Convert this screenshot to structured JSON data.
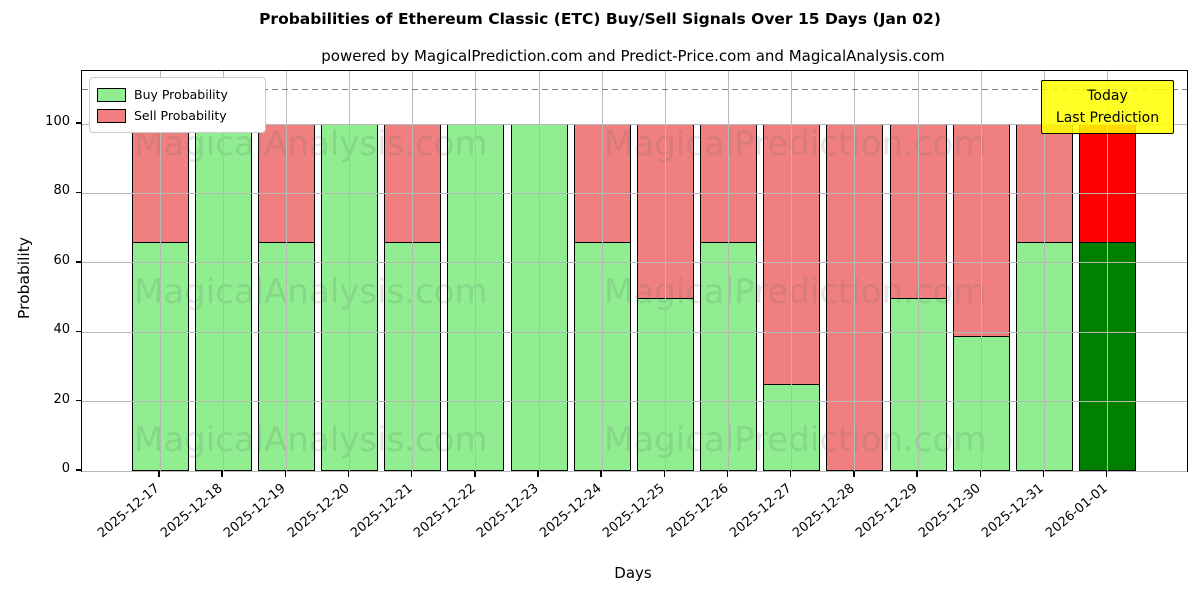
{
  "figure": {
    "title": "Probabilities of Ethereum Classic (ETC) Buy/Sell Signals Over 15 Days (Jan 02)",
    "subtitle": "powered by MagicalPrediction.com and Predict-Price.com and MagicalAnalysis.com"
  },
  "chart_data": {
    "type": "bar",
    "stacked": true,
    "title": "Probabilities of Ethereum Classic (ETC) Buy/Sell Signals Over 15 Days (Jan 02)",
    "subtitle": "powered by MagicalPrediction.com and Predict-Price.com and MagicalAnalysis.com",
    "xlabel": "Days",
    "ylabel": "Probability",
    "ylim": [
      0,
      115
    ],
    "yticks": [
      0,
      20,
      40,
      60,
      80,
      100
    ],
    "grid": true,
    "legend_position": "upper left",
    "dashed_reference_line_y": 110,
    "categories": [
      "2025-12-17",
      "2025-12-18",
      "2025-12-19",
      "2025-12-20",
      "2025-12-21",
      "2025-12-22",
      "2025-12-23",
      "2025-12-24",
      "2025-12-25",
      "2025-12-26",
      "2025-12-27",
      "2025-12-28",
      "2025-12-29",
      "2025-12-30",
      "2025-12-31",
      "2026-01-01"
    ],
    "series": [
      {
        "name": "Buy Probability",
        "color": "#90ee90",
        "values": [
          66,
          100,
          66,
          100,
          66,
          100,
          100,
          66,
          50,
          66,
          25,
          0,
          50,
          39,
          66,
          66
        ]
      },
      {
        "name": "Sell Probability",
        "color": "#f08080",
        "values": [
          34,
          0,
          34,
          0,
          34,
          0,
          0,
          34,
          50,
          34,
          75,
          100,
          50,
          61,
          34,
          34
        ]
      }
    ],
    "today_bar": {
      "category": "2026-01-01",
      "index": 15,
      "buy_color": "#008000",
      "sell_color": "#ff0000"
    }
  },
  "legend": {
    "items": [
      {
        "label": "Buy Probability",
        "color": "#90ee90"
      },
      {
        "label": "Sell Probability",
        "color": "#f08080"
      }
    ]
  },
  "annotation": {
    "line1": "Today",
    "line2": "Last Prediction",
    "bg_color": "#ffff00"
  },
  "watermarks": {
    "left": "MagicalAnalysis.com",
    "right": "MagicalPrediction.com"
  },
  "colors": {
    "buy": "#90ee90",
    "sell": "#f08080",
    "today_buy": "#008000",
    "today_sell": "#ff0000",
    "grid": "#b8b8b8",
    "dashed_line": "#7f7f7f",
    "annotation_bg": "#ffff00"
  }
}
